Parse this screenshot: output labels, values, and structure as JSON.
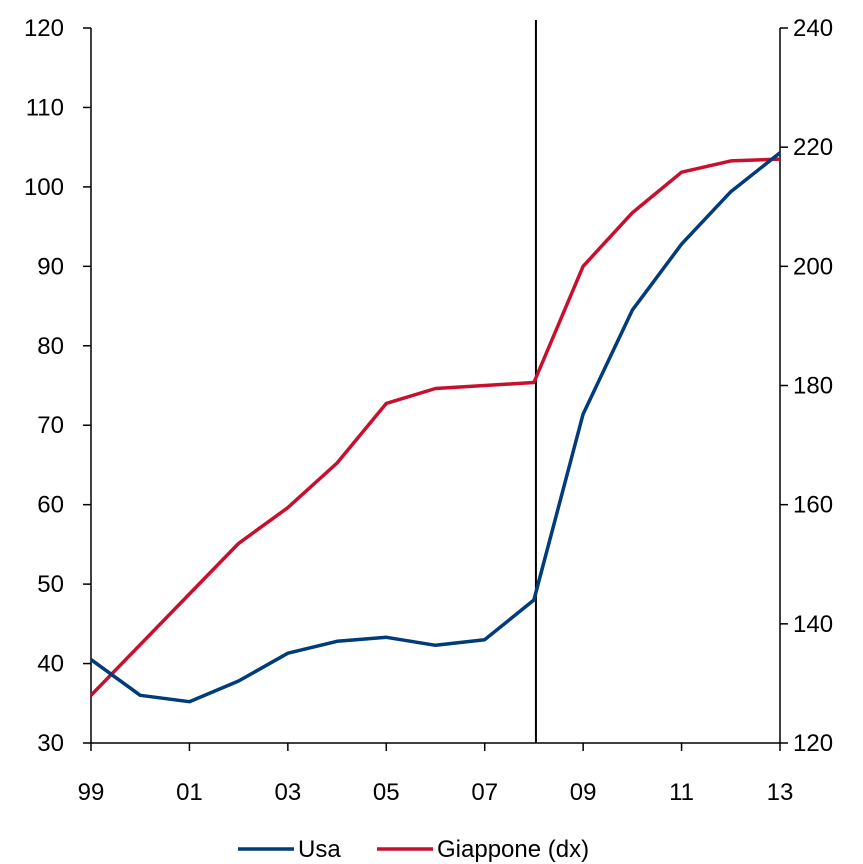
{
  "chart_data": {
    "type": "line",
    "x": [
      "1999",
      "2000",
      "2001",
      "2002",
      "2003",
      "2004",
      "2005",
      "2006",
      "2007",
      "2008",
      "2009",
      "2010",
      "2011",
      "2012",
      "2013"
    ],
    "x_tick_labels": [
      "99",
      "01",
      "03",
      "05",
      "07",
      "09",
      "11",
      "13"
    ],
    "y_left": {
      "ylim": [
        30,
        120
      ],
      "ticks": [
        30,
        40,
        50,
        60,
        70,
        80,
        90,
        100,
        110,
        120
      ]
    },
    "y_right": {
      "ylim": [
        120,
        240
      ],
      "ticks": [
        120,
        140,
        160,
        180,
        200,
        220,
        240
      ]
    },
    "vertical_marker_x": "2008",
    "legend_position": "bottom",
    "series": [
      {
        "name": "Usa",
        "axis": "left",
        "color": "#003B7A",
        "values": [
          40.5,
          36.0,
          35.2,
          37.8,
          41.3,
          42.8,
          43.3,
          42.3,
          43.0,
          48.0,
          71.4,
          84.5,
          92.8,
          99.4,
          104.3
        ]
      },
      {
        "name": "Giappone (dx)",
        "axis": "right",
        "color": "#C8102E",
        "values": [
          128.0,
          136.5,
          145.0,
          153.5,
          159.5,
          167.0,
          177.0,
          179.5,
          180.0,
          180.5,
          200.0,
          209.0,
          215.8,
          217.7,
          218.0
        ]
      }
    ]
  }
}
